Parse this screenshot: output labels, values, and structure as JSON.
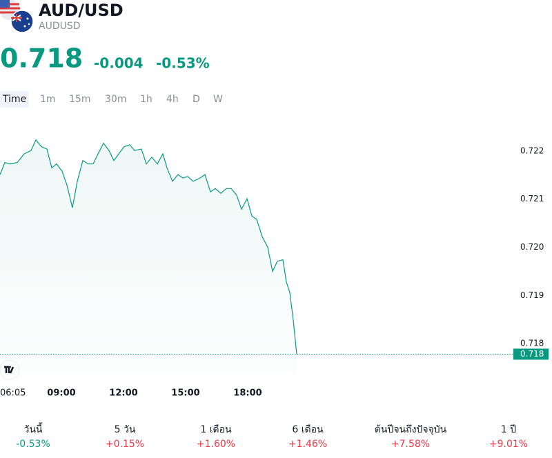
{
  "header": {
    "symbol": "AUD/USD",
    "ticker": "AUDUSD",
    "price": "0.718",
    "change": "-0.004",
    "change_percent": "-0.53%"
  },
  "intervals": [
    "Time",
    "1m",
    "15m",
    "30m",
    "1h",
    "4h",
    "D",
    "W"
  ],
  "chart_data": {
    "type": "area",
    "color": "#089981",
    "x": [
      362,
      376,
      392,
      412,
      432,
      452,
      466,
      482,
      498,
      512,
      526,
      542,
      556,
      572,
      586,
      602,
      618,
      632,
      646,
      662,
      678,
      692,
      706,
      722,
      738,
      752,
      772,
      786,
      802,
      818,
      834,
      846,
      862,
      878,
      892,
      906,
      922,
      942,
      956,
      972,
      986,
      1002,
      1018,
      1032,
      1048,
      1062,
      1078,
      1092,
      1106,
      1122,
      1138,
      1152,
      1166,
      1182,
      1192,
      1202,
      1212,
      1218,
      1222
    ],
    "values": [
      0.72151,
      0.72176,
      0.72173,
      0.72176,
      0.72194,
      0.72201,
      0.72223,
      0.72209,
      0.72204,
      0.72165,
      0.72173,
      0.72158,
      0.72129,
      0.72082,
      0.72137,
      0.7218,
      0.72173,
      0.72173,
      0.72194,
      0.72216,
      0.72201,
      0.7218,
      0.72194,
      0.72209,
      0.72213,
      0.72201,
      0.72204,
      0.72173,
      0.72187,
      0.72173,
      0.72194,
      0.72165,
      0.72137,
      0.72151,
      0.72144,
      0.72147,
      0.72137,
      0.72144,
      0.72151,
      0.72115,
      0.72122,
      0.72112,
      0.72122,
      0.72122,
      0.72108,
      0.72079,
      0.72101,
      0.72065,
      0.72058,
      0.72022,
      0.72,
      0.7195,
      0.71971,
      0.71974,
      0.71928,
      0.71906,
      0.71849,
      0.71806,
      0.71778
    ],
    "last_label": "0.718",
    "xlim": [
      362,
      1842
    ],
    "xticks": [
      {
        "value": 365,
        "label": "06:05"
      },
      {
        "value": 540,
        "label": "09:00"
      },
      {
        "value": 720,
        "label": "12:00"
      },
      {
        "value": 900,
        "label": "15:00"
      },
      {
        "value": 1080,
        "label": "18:00"
      }
    ],
    "ylim": [
      0.7174,
      0.7227
    ],
    "yticks": [
      0.722,
      0.721,
      {
        "value": 0.72,
        "label": "0.720"
      },
      0.719,
      0.718
    ]
  },
  "performance": [
    {
      "label": "วันนี้",
      "value": "-0.53%",
      "color": "#089981"
    },
    {
      "label": "5 วัน",
      "value": "+0.15%",
      "color": "#f23645"
    },
    {
      "label": "1 เดือน",
      "value": "+1.60%",
      "color": "#f23645"
    },
    {
      "label": "6 เดือน",
      "value": "+1.46%",
      "color": "#f23645"
    },
    {
      "label": "ต้นปีจนถึงปัจจุบัน",
      "value": "+7.58%",
      "color": "#f23645"
    },
    {
      "label": "1 ปี",
      "value": "+9.01%",
      "color": "#f23645"
    }
  ]
}
